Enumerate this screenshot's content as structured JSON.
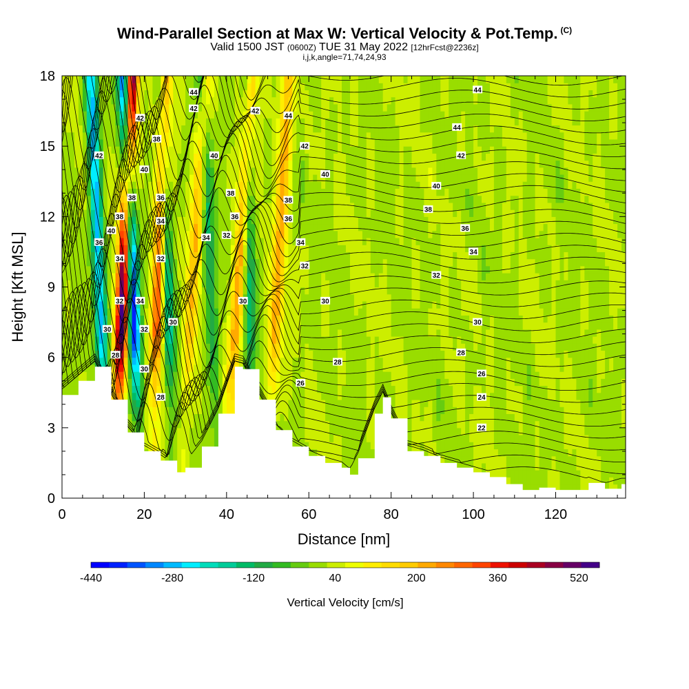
{
  "header": {
    "title": "Wind-Parallel Section at Max W: Vertical Velocity & Pot.Temp.",
    "copyright": "(C)",
    "subtitle_main": "Valid 1500 JST",
    "subtitle_utc": "(0600Z)",
    "subtitle_date": "TUE 31 May 2022",
    "subtitle_fcst": "[12hrFcst@2236z]",
    "indices": "i,j,k,angle=71,74,24,93"
  },
  "chart_data": {
    "type": "heatmap",
    "title": "Wind-Parallel Section at Max W: Vertical Velocity & Pot.Temp.",
    "xlabel": "Distance [nm]",
    "ylabel": "Height [Kft MSL]",
    "xlim": [
      0,
      137
    ],
    "ylim": [
      0,
      18
    ],
    "x_ticks": [
      0,
      20,
      40,
      60,
      80,
      100,
      120
    ],
    "y_ticks": [
      0,
      3,
      6,
      9,
      12,
      15,
      18
    ],
    "grid": false,
    "colorbar": {
      "label": "Vertical Velocity [cm/s]",
      "placement": "bottom",
      "tick_labels": [
        -440,
        -280,
        -120,
        40,
        200,
        360,
        520
      ],
      "colors": [
        "#0000ff",
        "#0022ff",
        "#0055ff",
        "#0088ff",
        "#00bbff",
        "#00eeff",
        "#00ddbb",
        "#00cc99",
        "#00bb66",
        "#22aa44",
        "#33bb22",
        "#66cc11",
        "#99dd00",
        "#ccee00",
        "#eeff00",
        "#ffee00",
        "#ffdd00",
        "#ffcc00",
        "#ffaa00",
        "#ff8800",
        "#ff6600",
        "#ff4400",
        "#ee1100",
        "#cc0000",
        "#aa0022",
        "#880044",
        "#660066",
        "#440088"
      ]
    },
    "updraft_bands": [
      {
        "x_base": 13,
        "x_top": 17,
        "w_max": 520
      },
      {
        "x_base": 22,
        "x_top": 25,
        "w_max": 300
      },
      {
        "x_base": 29,
        "x_top": 35,
        "w_max": 180
      },
      {
        "x_base": 40,
        "x_top": 46,
        "w_max": 220
      },
      {
        "x_base": 50,
        "x_top": 55,
        "w_max": 200
      }
    ],
    "downdraft_bands": [
      {
        "x_base": 11,
        "x_top": 7,
        "w_min": -300
      },
      {
        "x_base": 19,
        "x_top": 15,
        "w_min": -440
      },
      {
        "x_base": 27,
        "x_top": 24,
        "w_min": -200
      },
      {
        "x_base": 38,
        "x_top": 34,
        "w_min": -150
      },
      {
        "x_base": 46,
        "x_top": 45,
        "w_min": -150
      }
    ],
    "terrain_height_kft": {
      "x": [
        0,
        4,
        8,
        12,
        16,
        20,
        24,
        28,
        30,
        34,
        38,
        42,
        44,
        48,
        52,
        56,
        60,
        64,
        68,
        70,
        72,
        76,
        78,
        80,
        84,
        88,
        92,
        96,
        100,
        104,
        108,
        112,
        116,
        120,
        124,
        128,
        132,
        136
      ],
      "h": [
        4.4,
        5.0,
        5.6,
        4.2,
        2.8,
        2.0,
        1.6,
        1.1,
        1.3,
        2.2,
        3.6,
        5.6,
        5.5,
        4.2,
        2.9,
        2.2,
        1.8,
        1.5,
        1.3,
        1.0,
        1.7,
        3.6,
        4.3,
        3.4,
        2.0,
        1.8,
        1.5,
        1.3,
        1.1,
        0.9,
        0.6,
        0.35,
        0.45,
        0.35,
        0.35,
        0.65,
        0.4,
        0.6
      ]
    },
    "theta_contours_labeled": [
      22,
      24,
      26,
      28,
      30,
      32,
      34,
      36,
      38,
      40,
      42,
      44
    ],
    "theta_labels": [
      {
        "x": 102,
        "y": 3.0,
        "v": "22"
      },
      {
        "x": 102,
        "y": 4.3,
        "v": "24"
      },
      {
        "x": 58,
        "y": 4.9,
        "v": "26"
      },
      {
        "x": 102,
        "y": 5.3,
        "v": "26"
      },
      {
        "x": 67,
        "y": 5.8,
        "v": "28"
      },
      {
        "x": 97,
        "y": 6.2,
        "v": "28"
      },
      {
        "x": 101,
        "y": 7.5,
        "v": "30"
      },
      {
        "x": 64,
        "y": 8.4,
        "v": "30"
      },
      {
        "x": 91,
        "y": 9.5,
        "v": "32"
      },
      {
        "x": 59,
        "y": 9.9,
        "v": "32"
      },
      {
        "x": 100,
        "y": 10.5,
        "v": "34"
      },
      {
        "x": 58,
        "y": 10.9,
        "v": "34"
      },
      {
        "x": 98,
        "y": 11.5,
        "v": "36"
      },
      {
        "x": 55,
        "y": 11.9,
        "v": "36"
      },
      {
        "x": 89,
        "y": 12.3,
        "v": "38"
      },
      {
        "x": 55,
        "y": 12.7,
        "v": "38"
      },
      {
        "x": 91,
        "y": 13.3,
        "v": "40"
      },
      {
        "x": 64,
        "y": 13.8,
        "v": "40"
      },
      {
        "x": 97,
        "y": 14.6,
        "v": "42"
      },
      {
        "x": 59,
        "y": 15.0,
        "v": "42"
      },
      {
        "x": 96,
        "y": 15.8,
        "v": "44"
      },
      {
        "x": 55,
        "y": 16.3,
        "v": "44"
      },
      {
        "x": 101,
        "y": 17.4,
        "v": "44"
      },
      {
        "x": 47,
        "y": 16.5,
        "v": "42"
      },
      {
        "x": 32,
        "y": 16.6,
        "v": "42"
      },
      {
        "x": 32,
        "y": 17.3,
        "v": "44"
      },
      {
        "x": 19,
        "y": 16.2,
        "v": "42"
      },
      {
        "x": 23,
        "y": 15.3,
        "v": "38"
      },
      {
        "x": 20,
        "y": 14.0,
        "v": "40"
      },
      {
        "x": 9,
        "y": 14.6,
        "v": "42"
      },
      {
        "x": 37,
        "y": 14.6,
        "v": "40"
      },
      {
        "x": 41,
        "y": 13.0,
        "v": "38"
      },
      {
        "x": 24,
        "y": 12.8,
        "v": "36"
      },
      {
        "x": 17,
        "y": 12.8,
        "v": "38"
      },
      {
        "x": 14,
        "y": 12.0,
        "v": "38"
      },
      {
        "x": 42,
        "y": 12.0,
        "v": "36"
      },
      {
        "x": 24,
        "y": 11.8,
        "v": "34"
      },
      {
        "x": 12,
        "y": 11.4,
        "v": "40"
      },
      {
        "x": 35,
        "y": 11.1,
        "v": "34"
      },
      {
        "x": 40,
        "y": 11.2,
        "v": "32"
      },
      {
        "x": 9,
        "y": 10.9,
        "v": "36"
      },
      {
        "x": 14,
        "y": 10.2,
        "v": "34"
      },
      {
        "x": 24,
        "y": 10.2,
        "v": "32"
      },
      {
        "x": 44,
        "y": 8.4,
        "v": "30"
      },
      {
        "x": 19,
        "y": 8.4,
        "v": "34"
      },
      {
        "x": 14,
        "y": 8.4,
        "v": "32"
      },
      {
        "x": 27,
        "y": 7.5,
        "v": "30"
      },
      {
        "x": 11,
        "y": 7.2,
        "v": "30"
      },
      {
        "x": 20,
        "y": 7.2,
        "v": "32"
      },
      {
        "x": 13,
        "y": 6.1,
        "v": "28"
      },
      {
        "x": 20,
        "y": 5.5,
        "v": "30"
      },
      {
        "x": 24,
        "y": 4.3,
        "v": "28"
      }
    ]
  }
}
